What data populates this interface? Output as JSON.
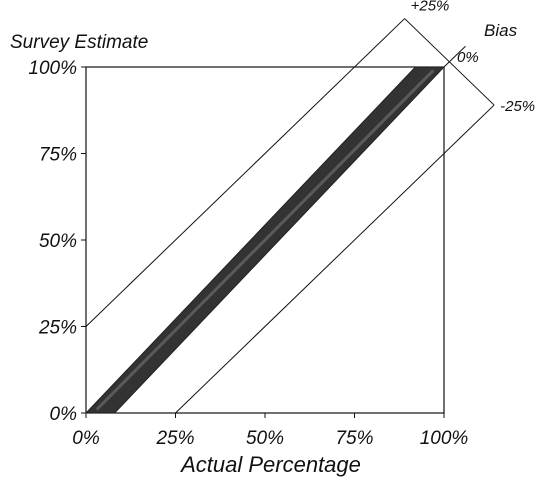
{
  "chart_data": {
    "type": "line",
    "ylabel": "Survey Estimate",
    "xlabel": "Actual Percentage",
    "bias_label": "Bias",
    "xlim": [
      0,
      100
    ],
    "ylim": [
      0,
      100
    ],
    "x_ticks": [
      "0%",
      "25%",
      "50%",
      "75%",
      "100%"
    ],
    "y_ticks": [
      "0%",
      "25%",
      "50%",
      "75%",
      "100%"
    ],
    "x_tick_values": [
      0,
      25,
      50,
      75,
      100
    ],
    "y_tick_values": [
      0,
      25,
      50,
      75,
      100
    ],
    "bias_lines": [
      {
        "label": "+25%",
        "offset": 25
      },
      {
        "label": "0%",
        "offset": 0
      },
      {
        "label": "-25%",
        "offset": -25
      }
    ],
    "band": {
      "lower": [
        [
          0,
          0
        ],
        [
          8,
          0
        ],
        [
          100,
          100
        ]
      ],
      "upper": [
        [
          0,
          0
        ],
        [
          92,
          100
        ],
        [
          100,
          100
        ]
      ]
    },
    "colors": {
      "band": "#333333",
      "axis": "#111111"
    }
  }
}
